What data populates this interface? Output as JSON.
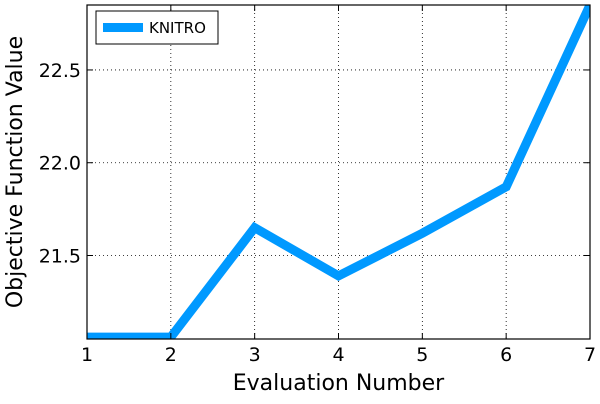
{
  "chart_data": {
    "type": "line",
    "title": "",
    "xlabel": "Evaluation Number",
    "ylabel": "Objective Function Value",
    "xlim": [
      1,
      7
    ],
    "ylim": [
      21.05,
      22.85
    ],
    "x_ticks": [
      1,
      2,
      3,
      4,
      5,
      6,
      7
    ],
    "x_tick_labels": [
      "1",
      "2",
      "3",
      "4",
      "5",
      "6",
      "7"
    ],
    "y_ticks": [
      21.5,
      22.0,
      22.5
    ],
    "y_tick_labels": [
      "21.5",
      "22.0",
      "22.5"
    ],
    "grid": true,
    "legend_position": "top-left",
    "series": [
      {
        "name": "KNITRO",
        "color": "#0099ff",
        "x": [
          1,
          2,
          3,
          4,
          5,
          6,
          7
        ],
        "y": [
          21.06,
          21.06,
          21.65,
          21.39,
          21.62,
          21.87,
          22.85
        ]
      }
    ]
  }
}
